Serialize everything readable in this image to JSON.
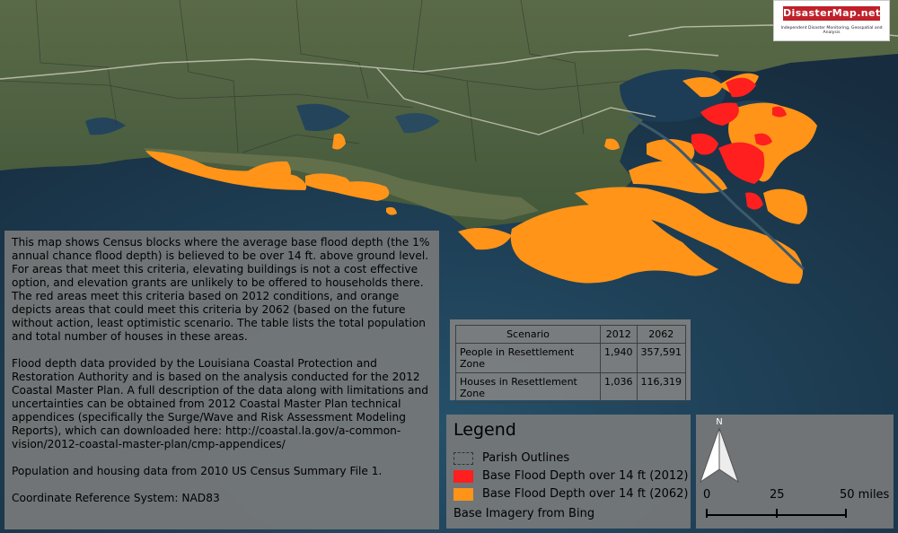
{
  "header": {
    "logo_text": "DisasterMap.net",
    "logo_subtitle": "Independent Disaster Monitoring, Geospatial and Analysis"
  },
  "description": {
    "paragraph1": "This map shows Census blocks where the average base flood depth (the 1% annual chance flood depth) is believed to be over 14 ft. above ground level. For areas that meet this criteria, elevating buildings is not a cost effective option, and elevation grants are unlikely to be offered to households there. The red areas meet this criteria based on 2012 conditions, and orange depicts areas that could meet this criteria by 2062 (based on the future without action, least optimistic scenario.  The table lists the total population and total number of houses in these areas.",
    "paragraph2": "Flood depth data provided by the Louisiana Coastal Protection and Restoration Authority and is based on the analysis conducted for the 2012 Coastal Master Plan.  A full description of the data along with limitations and uncertainties can be obtained from 2012 Coastal Master Plan technical appendices (specifically the Surge/Wave and Risk Assessment Modeling Reports), which can downloaded here: http://coastal.la.gov/a-common-vision/2012-coastal-master-plan/cmp-appendices/",
    "paragraph3": "Population and housing data from 2010 US Census Summary File 1.",
    "paragraph4": "Coordinate Reference System:  NAD83"
  },
  "table": {
    "headers": [
      "Scenario",
      "2012",
      "2062"
    ],
    "rows": [
      {
        "label": "People in Resettlement Zone",
        "v2012": "1,940",
        "v2062": "357,591"
      },
      {
        "label": "Houses in Resettlement Zone",
        "v2012": "1,036",
        "v2062": "116,319"
      }
    ]
  },
  "legend": {
    "title": "Legend",
    "items": [
      {
        "label": "Parish Outlines",
        "type": "outline"
      },
      {
        "label": "Base Flood Depth over 14 ft (2012)",
        "type": "fill",
        "color": "#ff1f1f"
      },
      {
        "label": "Base Flood Depth over 14 ft (2062)",
        "type": "fill",
        "color": "#ff9418"
      }
    ],
    "imagery_note": "Base Imagery from Bing"
  },
  "scale_bar": {
    "ticks": [
      "0",
      "25",
      "50 miles"
    ]
  },
  "north_arrow": {
    "label": "N"
  },
  "colors": {
    "flood_2012": "#ff1f1f",
    "flood_2062": "#ff9418",
    "land": "#4f6440",
    "water": "#1f3b52"
  }
}
